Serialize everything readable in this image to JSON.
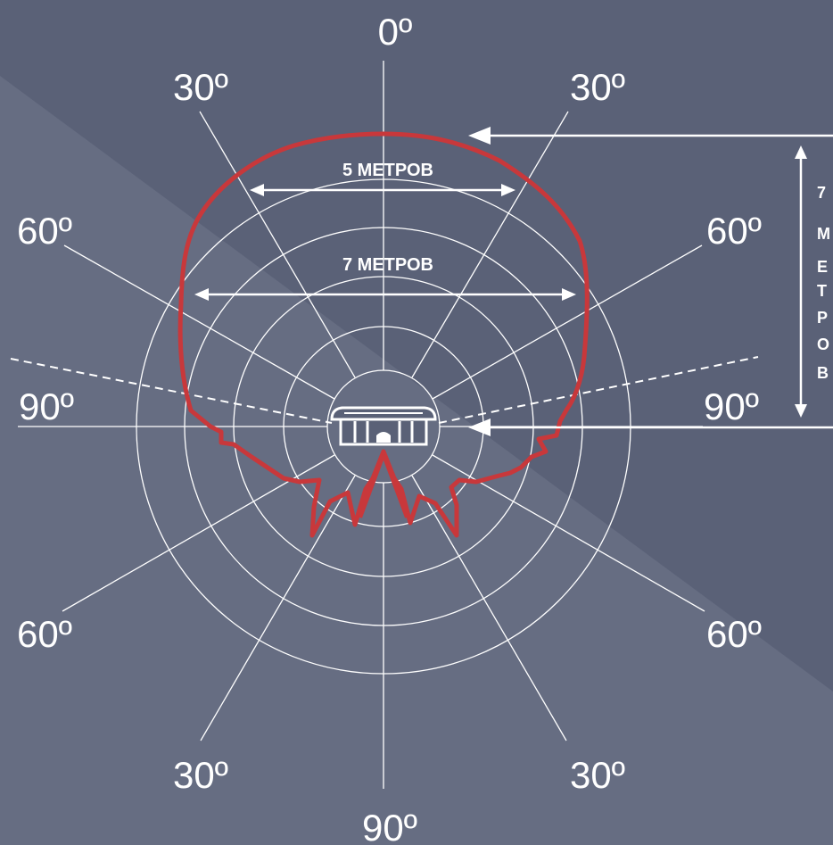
{
  "colors": {
    "background_dark": "#5a6177",
    "background_light": "#666d82",
    "lines": "#ffffff",
    "coverage": "#c8383b"
  },
  "angle_labels": {
    "top": "0º",
    "upper_left_30": "30º",
    "upper_right_30": "30º",
    "upper_left_60": "60º",
    "upper_right_60": "60º",
    "left_90": "90º",
    "right_90": "90º",
    "lower_left_60": "60º",
    "lower_right_60": "60º",
    "lower_left_30": "30º",
    "lower_right_30": "30º",
    "bottom": "90º"
  },
  "dimensions": {
    "width_5m": "5 МЕТРОВ",
    "width_7m": "7 МЕТРОВ",
    "range_number": "7",
    "range_letters": [
      "М",
      "Е",
      "Т",
      "Р",
      "О",
      "В"
    ]
  },
  "sensor": {
    "icon": "motion-sensor-icon"
  }
}
